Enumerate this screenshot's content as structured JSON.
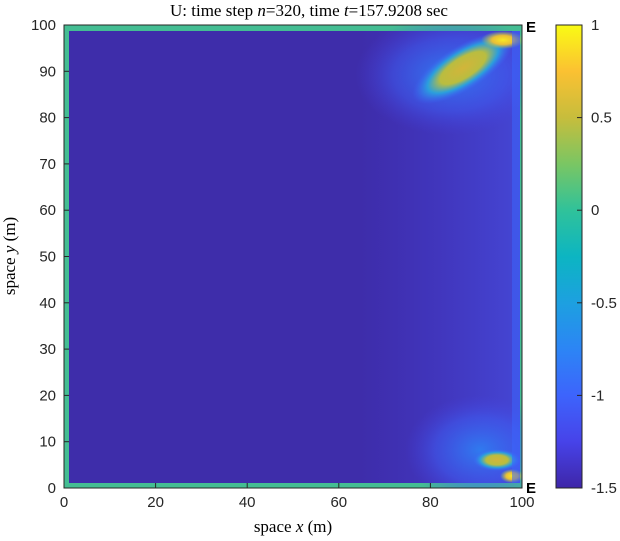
{
  "chart_data": {
    "type": "heatmap",
    "title": {
      "prefix": "U: time step ",
      "n_symbol": "n",
      "n_value": "=320, time ",
      "t_symbol": "t",
      "t_value": "=157.9208 sec"
    },
    "xlabel": {
      "before": "space ",
      "var": "x",
      "after": " (m)"
    },
    "ylabel": {
      "before": "space ",
      "var": "y",
      "after": " (m)"
    },
    "xlim": [
      0,
      100
    ],
    "ylim": [
      0,
      100
    ],
    "xticks": [
      "0",
      "20",
      "40",
      "60",
      "80",
      "100"
    ],
    "yticks": [
      "0",
      "10",
      "20",
      "30",
      "40",
      "50",
      "60",
      "70",
      "80",
      "90",
      "100"
    ],
    "colorbar": {
      "range": [
        -1.5,
        1
      ],
      "ticks": [
        "1",
        "0.5",
        "0",
        "-0.5",
        "-1",
        "-1.5"
      ],
      "colormap": "parula"
    },
    "edge_markers": [
      {
        "label": "E",
        "x": 100,
        "y": 100
      },
      {
        "label": "E",
        "x": 100,
        "y": 0
      }
    ],
    "field": {
      "background_value": -1.4,
      "boundary_value": 0.05,
      "features": [
        {
          "kind": "blob",
          "cx": 87,
          "cy": 90,
          "value": 0.55
        },
        {
          "kind": "blob",
          "cx": 95,
          "cy": 98,
          "value": 0.75
        },
        {
          "kind": "blob",
          "cx": 93,
          "cy": 6,
          "value": 0.5
        },
        {
          "kind": "blob",
          "cx": 97,
          "cy": 2,
          "value": 0.85
        }
      ]
    }
  }
}
